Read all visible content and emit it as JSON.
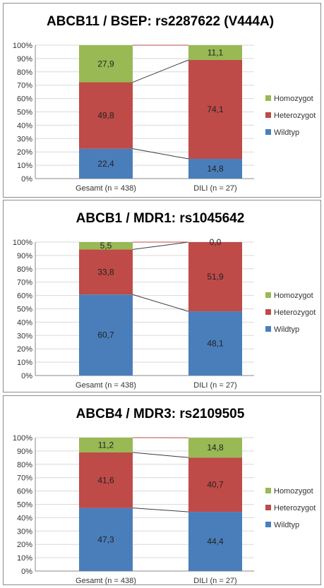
{
  "colors": {
    "wildtyp": "#4a7ebb",
    "heterozygot": "#be4b48",
    "homozygot": "#98b954",
    "grid": "#d9d9d9",
    "axis": "#888888"
  },
  "chart_data": [
    {
      "type": "bar",
      "stacked": true,
      "title": "ABCB11 / BSEP: rs2287622 (V444A)",
      "categories": [
        "Gesamt (n = 438)",
        "DILI (n = 27)"
      ],
      "series": [
        {
          "name": "Wildtyp",
          "values": [
            22.4,
            14.8
          ],
          "labels": [
            "22,4",
            "14,8"
          ]
        },
        {
          "name": "Heterozygot",
          "values": [
            49.8,
            74.1
          ],
          "labels": [
            "49,8",
            "74,1"
          ]
        },
        {
          "name": "Homozygot",
          "values": [
            27.9,
            11.1
          ],
          "labels": [
            "27,9",
            "11,1"
          ]
        }
      ],
      "ylim": [
        0,
        100
      ],
      "yticks": [
        "0%",
        "10%",
        "20%",
        "30%",
        "40%",
        "50%",
        "60%",
        "70%",
        "80%",
        "90%",
        "100%"
      ],
      "legend": "right",
      "grid": true
    },
    {
      "type": "bar",
      "stacked": true,
      "title": "ABCB1 / MDR1: rs1045642",
      "categories": [
        "Gesamt (n = 438)",
        "DILI (n = 27)"
      ],
      "series": [
        {
          "name": "Wildtyp",
          "values": [
            60.7,
            48.1
          ],
          "labels": [
            "60,7",
            "48,1"
          ]
        },
        {
          "name": "Heterozygot",
          "values": [
            33.8,
            51.9
          ],
          "labels": [
            "33,8",
            "51,9"
          ]
        },
        {
          "name": "Homozygot",
          "values": [
            5.5,
            0.0
          ],
          "labels": [
            "5,5",
            "0,0"
          ]
        }
      ],
      "ylim": [
        0,
        100
      ],
      "yticks": [
        "0%",
        "10%",
        "20%",
        "30%",
        "40%",
        "50%",
        "60%",
        "70%",
        "80%",
        "90%",
        "100%"
      ],
      "legend": "right",
      "grid": true
    },
    {
      "type": "bar",
      "stacked": true,
      "title": "ABCB4 / MDR3: rs2109505",
      "categories": [
        "Gesamt (n = 438)",
        "DILI (n = 27)"
      ],
      "series": [
        {
          "name": "Wildtyp",
          "values": [
            47.3,
            44.4
          ],
          "labels": [
            "47,3",
            "44,4"
          ]
        },
        {
          "name": "Heterozygot",
          "values": [
            41.6,
            40.7
          ],
          "labels": [
            "41,6",
            "40,7"
          ]
        },
        {
          "name": "Homozygot",
          "values": [
            11.2,
            14.8
          ],
          "labels": [
            "11,2",
            "14,8"
          ]
        }
      ],
      "ylim": [
        0,
        100
      ],
      "yticks": [
        "0%",
        "10%",
        "20%",
        "30%",
        "40%",
        "50%",
        "60%",
        "70%",
        "80%",
        "90%",
        "100%"
      ],
      "legend": "right",
      "grid": true
    }
  ]
}
